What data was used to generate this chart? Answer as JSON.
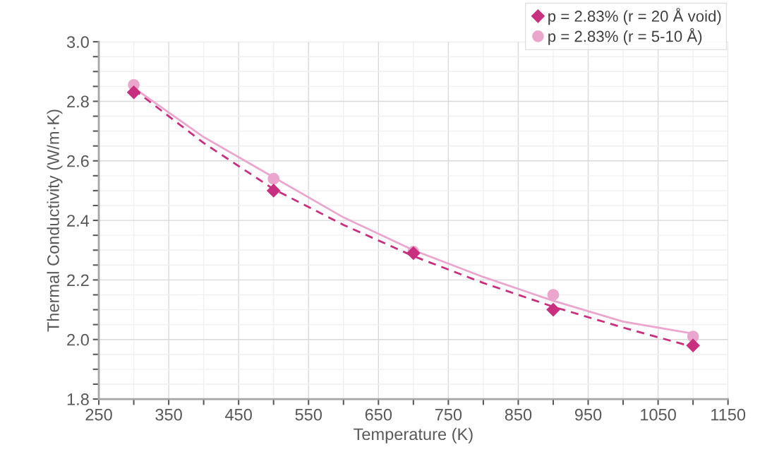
{
  "chart_data": {
    "type": "scatter",
    "xlabel": "Temperature (K)",
    "ylabel": "Thermal Conductivity (W/m·K)",
    "x": [
      300,
      500,
      700,
      900,
      1100
    ],
    "series": [
      {
        "name": "p = 2.83% (r = 20 Å void)",
        "color": "#c8307f",
        "marker": "diamond",
        "values": [
          2.83,
          2.5,
          2.29,
          2.1,
          1.98
        ]
      },
      {
        "name": "p = 2.83% (r = 5-10 Å)",
        "color": "#eaa6cc",
        "marker": "circle",
        "values": [
          2.855,
          2.54,
          2.295,
          2.15,
          2.01
        ]
      },
      {
        "type": "line",
        "color": "#c8307f",
        "line_style": "dashed",
        "x": [
          300,
          400,
          500,
          600,
          700,
          800,
          900,
          1000,
          1100
        ],
        "values": [
          2.84,
          2.66,
          2.505,
          2.385,
          2.28,
          2.19,
          2.11,
          2.04,
          1.975
        ]
      },
      {
        "type": "line",
        "color": "#eaa6cc",
        "line_style": "solid",
        "x": [
          300,
          400,
          500,
          600,
          700,
          800,
          900,
          1000,
          1100
        ],
        "values": [
          2.845,
          2.68,
          2.545,
          2.41,
          2.3,
          2.21,
          2.13,
          2.06,
          2.02
        ]
      }
    ],
    "xlim": [
      250,
      1150
    ],
    "xticks": [
      250,
      {
        "value": 300,
        "label": null
      },
      350,
      {
        "value": 400,
        "label": null
      },
      450,
      {
        "value": 500,
        "label": null
      },
      550,
      {
        "value": 600,
        "label": null
      },
      650,
      {
        "value": 700,
        "label": null
      },
      750,
      {
        "value": 800,
        "label": null
      },
      850,
      {
        "value": 900,
        "label": null
      },
      950,
      {
        "value": 1000,
        "label": null
      },
      1050,
      {
        "value": 1100,
        "label": null
      },
      1150
    ],
    "ylim": [
      1.8,
      3.0
    ],
    "yticks": [
      {
        "value": 1.8,
        "label": "1.8"
      },
      {
        "value": 1.85,
        "label": null
      },
      {
        "value": 1.9,
        "label": null
      },
      {
        "value": 1.95,
        "label": null
      },
      {
        "value": 2.0,
        "label": "2.0"
      },
      {
        "value": 2.05,
        "label": null
      },
      {
        "value": 2.1,
        "label": null
      },
      {
        "value": 2.15,
        "label": null
      },
      {
        "value": 2.2,
        "label": "2.2"
      },
      {
        "value": 2.25,
        "label": null
      },
      {
        "value": 2.3,
        "label": null
      },
      {
        "value": 2.35,
        "label": null
      },
      {
        "value": 2.4,
        "label": "2.4"
      },
      {
        "value": 2.45,
        "label": null
      },
      {
        "value": 2.5,
        "label": null
      },
      {
        "value": 2.55,
        "label": null
      },
      {
        "value": 2.6,
        "label": "2.6"
      },
      {
        "value": 2.65,
        "label": null
      },
      {
        "value": 2.7,
        "label": null
      },
      {
        "value": 2.75,
        "label": null
      },
      {
        "value": 2.8,
        "label": "2.8"
      },
      {
        "value": 2.85,
        "label": null
      },
      {
        "value": 2.9,
        "label": null
      },
      {
        "value": 2.95,
        "label": null
      },
      {
        "value": 3.0,
        "label": "3.0"
      }
    ],
    "grid": true,
    "legend": "top right"
  }
}
